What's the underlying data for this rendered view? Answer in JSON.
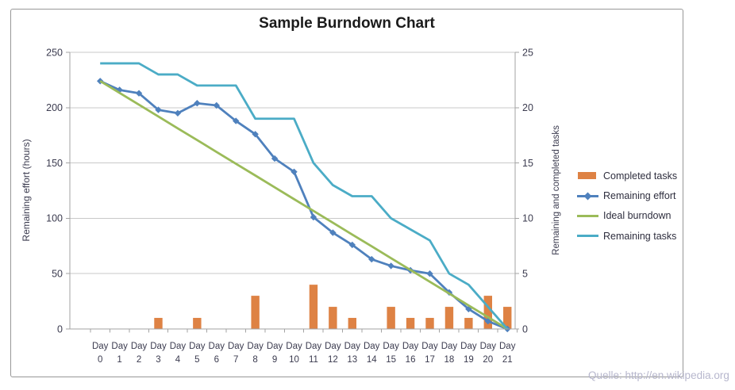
{
  "chart_data": {
    "type": "combo",
    "title": "Sample Burndown Chart",
    "watermark": "Quelle: http://en.wikipedia.org",
    "categories": [
      "Day 0",
      "Day 1",
      "Day 2",
      "Day 3",
      "Day 4",
      "Day 5",
      "Day 6",
      "Day 7",
      "Day 8",
      "Day 9",
      "Day 10",
      "Day 11",
      "Day 12",
      "Day 13",
      "Day 14",
      "Day 15",
      "Day 16",
      "Day 17",
      "Day 18",
      "Day 19",
      "Day 20",
      "Day 21"
    ],
    "left_axis": {
      "title": "Remaining effort (hours)",
      "ticks": [
        250,
        200,
        150,
        100,
        50,
        0
      ],
      "min": 0,
      "max": 250
    },
    "right_axis": {
      "title": "Remaining and  completed tasks",
      "ticks": [
        25,
        20,
        15,
        10,
        5,
        0
      ],
      "min": 0,
      "max": 25
    },
    "grid": "horizontal",
    "legend_position": "right",
    "series": [
      {
        "name": "Completed tasks",
        "type": "bar",
        "axis": "right",
        "color": "#DE8244",
        "values": [
          0,
          0,
          0,
          1,
          0,
          1,
          0,
          0,
          3,
          0,
          0,
          4,
          2,
          1,
          0,
          2,
          1,
          1,
          2,
          1,
          3,
          2
        ]
      },
      {
        "name": "Remaining effort",
        "type": "line",
        "marker": "diamond",
        "axis": "left",
        "color": "#4F81BD",
        "values": [
          224,
          216,
          213,
          198,
          195,
          204,
          202,
          188,
          176,
          154,
          142,
          101,
          87,
          76,
          63,
          57,
          53,
          50,
          33,
          18,
          7,
          0
        ]
      },
      {
        "name": "Ideal burndown",
        "type": "line",
        "axis": "left",
        "color": "#9BBB59",
        "values": [
          224,
          213.3,
          202.7,
          192,
          181.3,
          170.7,
          160,
          149.3,
          138.7,
          128,
          117.3,
          106.7,
          96,
          85.3,
          74.7,
          64,
          53.3,
          42.7,
          32,
          21.3,
          10.7,
          0
        ]
      },
      {
        "name": "Remaining tasks",
        "type": "line",
        "axis": "right",
        "color": "#4BACC6",
        "values": [
          24,
          24,
          24,
          23,
          23,
          22,
          22,
          22,
          19,
          19,
          19,
          15,
          13,
          12,
          12,
          10,
          9,
          8,
          5,
          4,
          2,
          0
        ]
      }
    ],
    "colors": {
      "gridline": "#C9C9C9",
      "axis_line": "#A3A3A3",
      "tick_text": "#3b3b4f",
      "title_text": "#1b1b1b",
      "watermark_text": "#b7b7cd"
    }
  }
}
